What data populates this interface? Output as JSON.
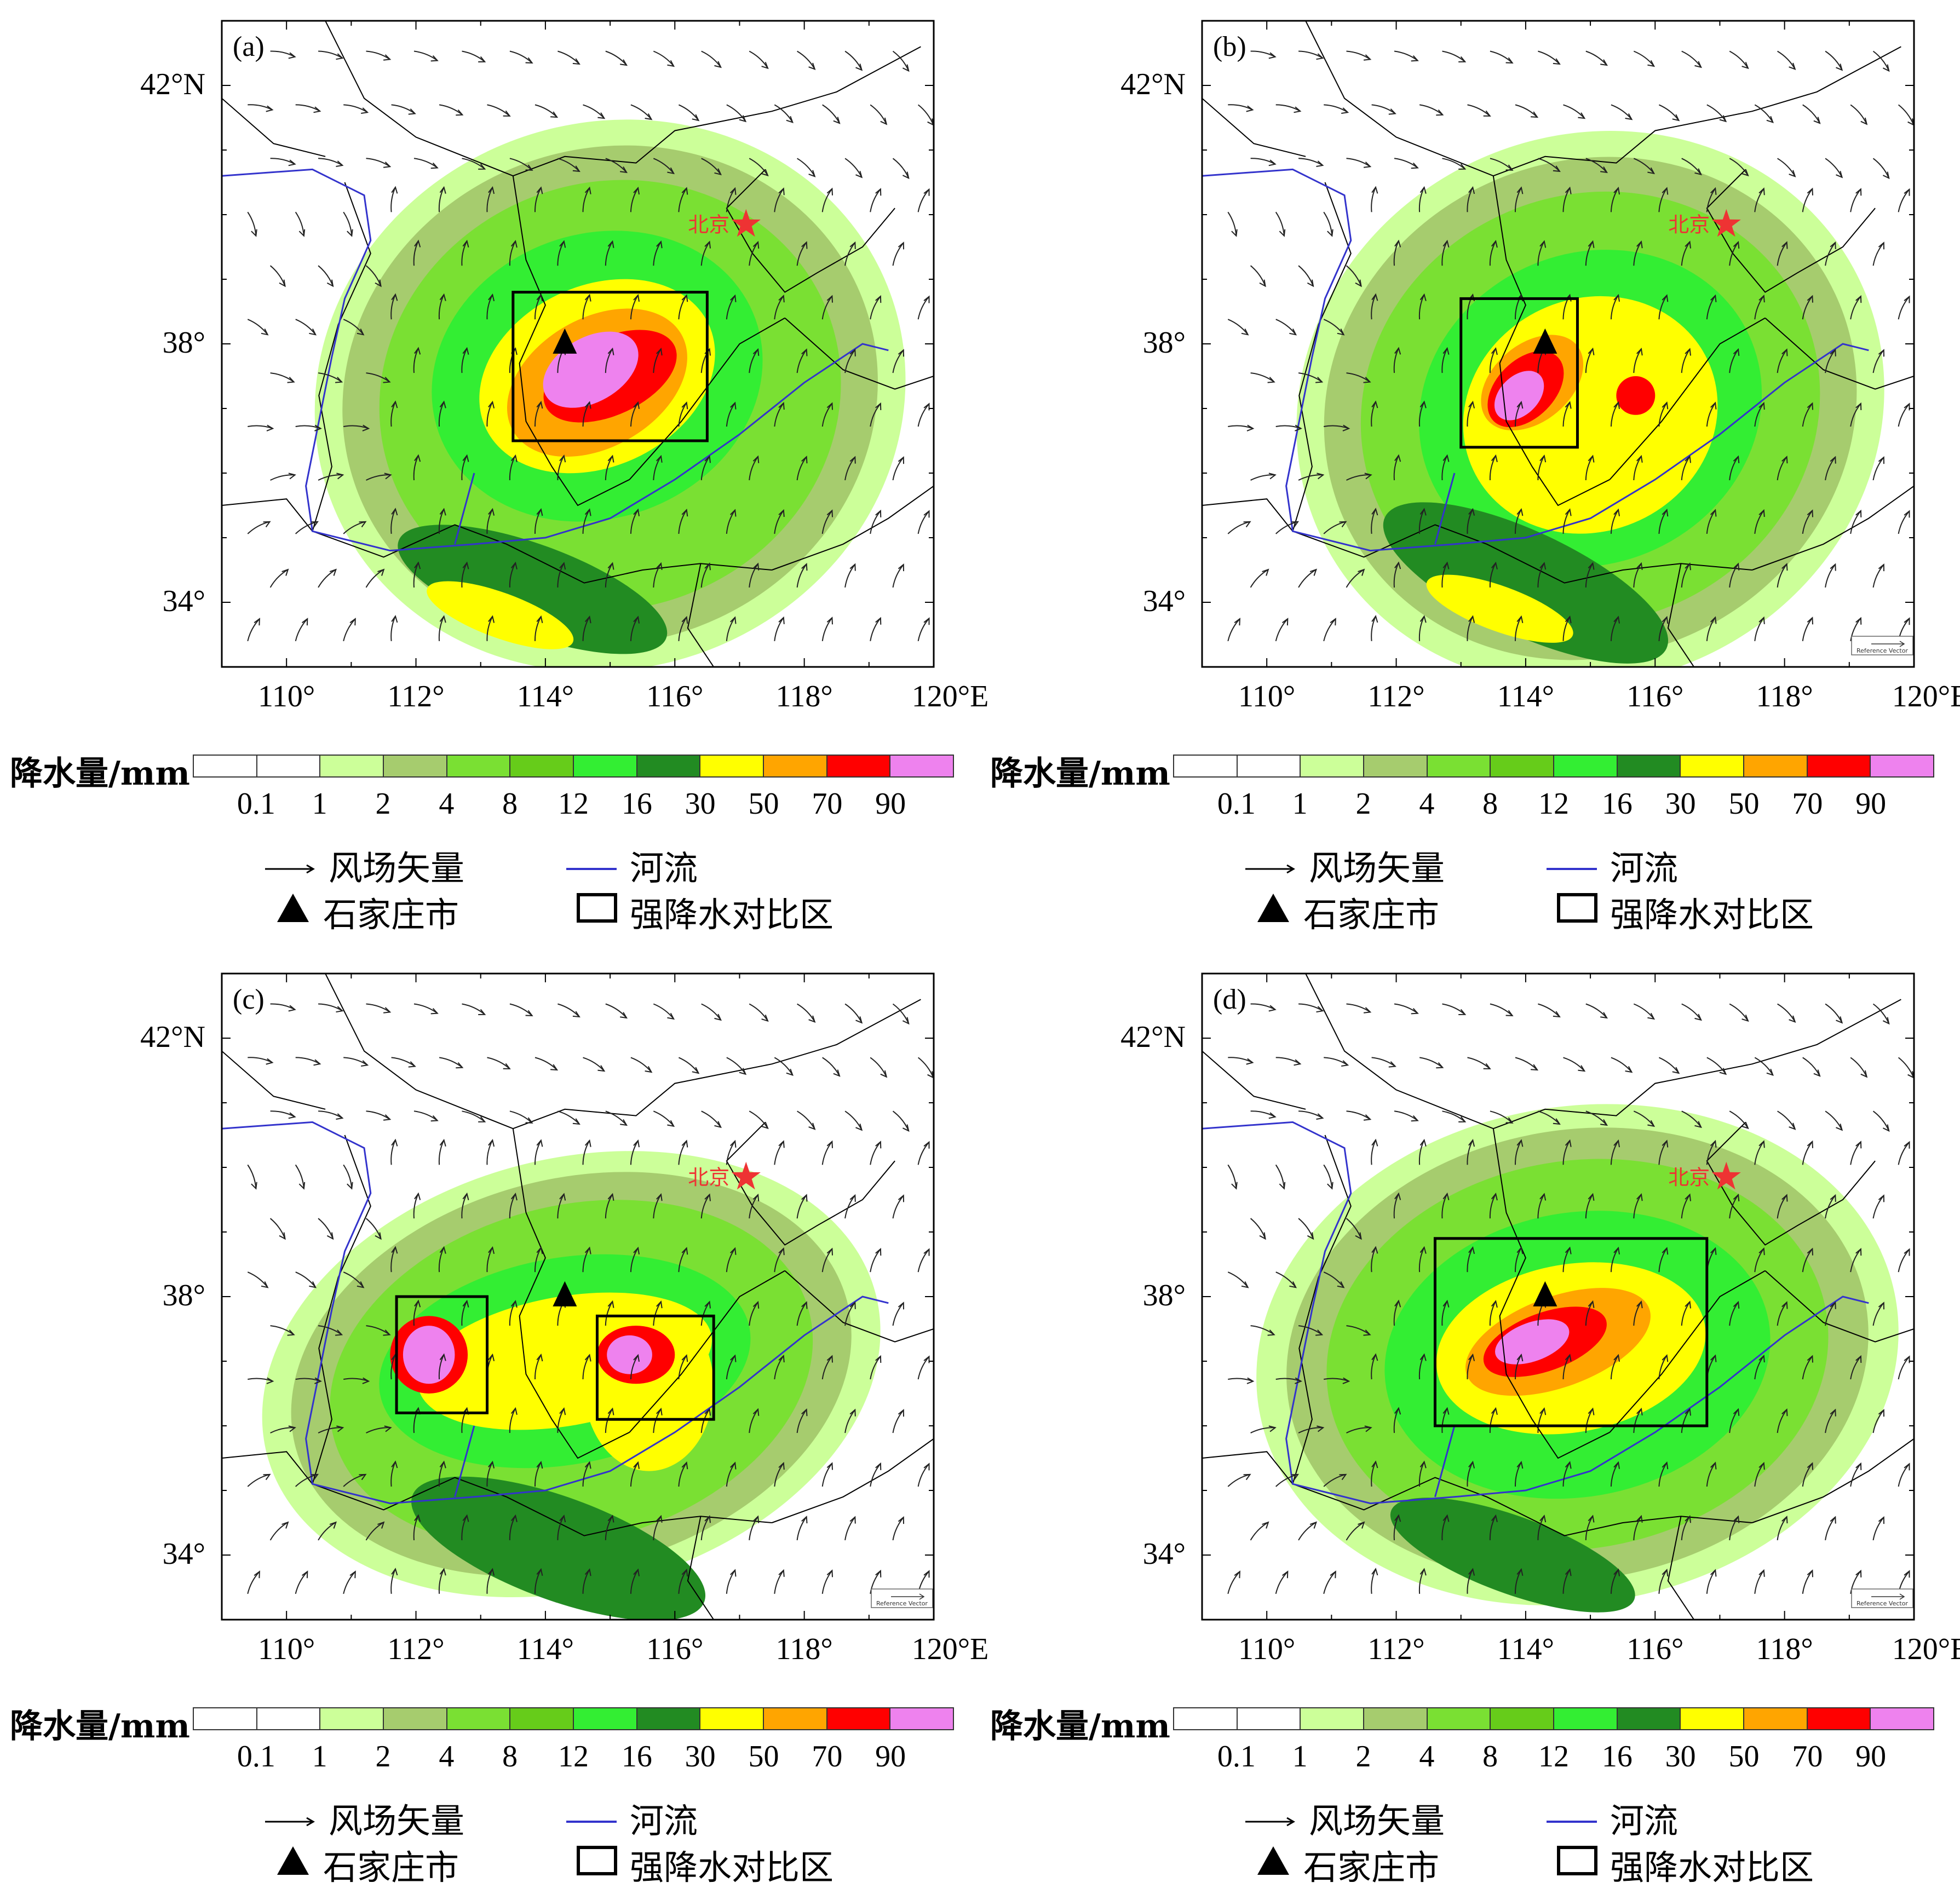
{
  "map": {
    "lat_labels": [
      "42°N",
      "38°",
      "34°"
    ],
    "lon_labels": [
      "110°",
      "112°",
      "114°",
      "116°",
      "118°",
      "120°E"
    ],
    "city_label": "北京",
    "reference_vector_label": "Reference Vector"
  },
  "panels": [
    {
      "id": "a",
      "label": "(a)"
    },
    {
      "id": "b",
      "label": "(b)"
    },
    {
      "id": "c",
      "label": "(c)"
    },
    {
      "id": "d",
      "label": "(d)"
    }
  ],
  "colorbar": {
    "title": "降水量/mm",
    "ticks": [
      "0.1",
      "1",
      "2",
      "4",
      "8",
      "12",
      "16",
      "30",
      "50",
      "70",
      "90"
    ],
    "colors": [
      "#ffffff",
      "#ffffff",
      "#ccff99",
      "#a6cc6e",
      "#7ae033",
      "#66cc1a",
      "#33ee33",
      "#228b22",
      "#ffff00",
      "#ffa500",
      "#ff0000",
      "#ee82ee"
    ]
  },
  "legend": {
    "wind": "风场矢量",
    "river": "河流",
    "city": "石家庄市",
    "box": "强降水对比区"
  },
  "colors": {
    "river": "#3333cc",
    "city_marker": "#ee3333",
    "boundary": "#000000"
  }
}
